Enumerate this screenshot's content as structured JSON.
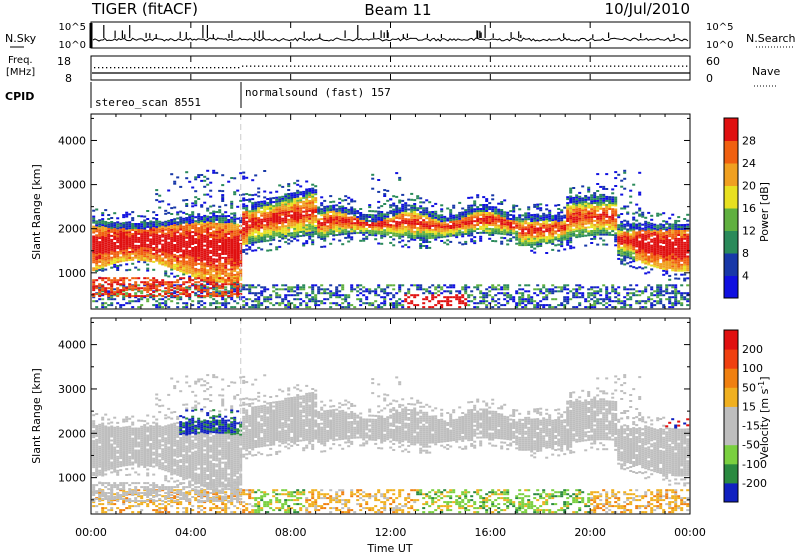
{
  "header": {
    "radar": "TIGER (fitACF)",
    "beam": "Beam 11",
    "date": "10/Jul/2010"
  },
  "sky_panel": {
    "left_label": "N.Sky",
    "right_label": "N.Search",
    "left_ticks": [
      "10^5",
      "10^0"
    ],
    "right_ticks": [
      "10^5",
      "10^0"
    ]
  },
  "freq_panel": {
    "left_label_1": "Freq.",
    "left_label_2": "[MHz]",
    "right_label": "Nave",
    "left_ticks": [
      "18",
      "8"
    ],
    "right_ticks": [
      "60",
      "0"
    ]
  },
  "cpid": {
    "label": "CPID",
    "programs": [
      {
        "name": "stereo_scan 8551",
        "start_hour": 0
      },
      {
        "name": "normalsound (fast) 157",
        "start_hour": 6
      }
    ]
  },
  "colors": {
    "power": [
      "#1010e0",
      "#1838a8",
      "#2a8a5a",
      "#60b040",
      "#e8e020",
      "#f0a020",
      "#f06010",
      "#e01010"
    ],
    "velocity": [
      "#1020c0",
      "#2a8a40",
      "#7ad040",
      "#bebebe",
      "#bebebe",
      "#f0b020",
      "#f08010",
      "#f04010",
      "#e01010"
    ],
    "ground": "#bebebe"
  },
  "chart_data": [
    {
      "type": "heatmap",
      "name_field": "Power",
      "ylabel": "Slant Range [km]",
      "yticks": [
        1000,
        2000,
        3000,
        4000
      ],
      "ylim": [
        180,
        4600
      ],
      "xlim_hours": [
        0,
        24
      ],
      "colorbar": {
        "label": "Power [dB]",
        "ticks": [
          "4",
          "8",
          "12",
          "16",
          "20",
          "24",
          "28"
        ],
        "range": [
          0,
          32
        ]
      }
    },
    {
      "type": "heatmap",
      "name_field": "Velocity",
      "ylabel": "Slant Range [km]",
      "yticks": [
        1000,
        2000,
        3000,
        4000
      ],
      "ylim": [
        180,
        4600
      ],
      "xlim_hours": [
        0,
        24
      ],
      "colorbar": {
        "label": "Velocity [m s",
        "label_sup": "-1",
        "label_end": "]",
        "ticks": [
          "-200",
          "-100",
          "-50",
          "-15",
          "15",
          "50",
          "100",
          "200"
        ]
      }
    }
  ],
  "xaxis": {
    "ticks": [
      "00:00",
      "04:00",
      "08:00",
      "12:00",
      "16:00",
      "20:00",
      "00:00"
    ],
    "label": "Time UT"
  }
}
